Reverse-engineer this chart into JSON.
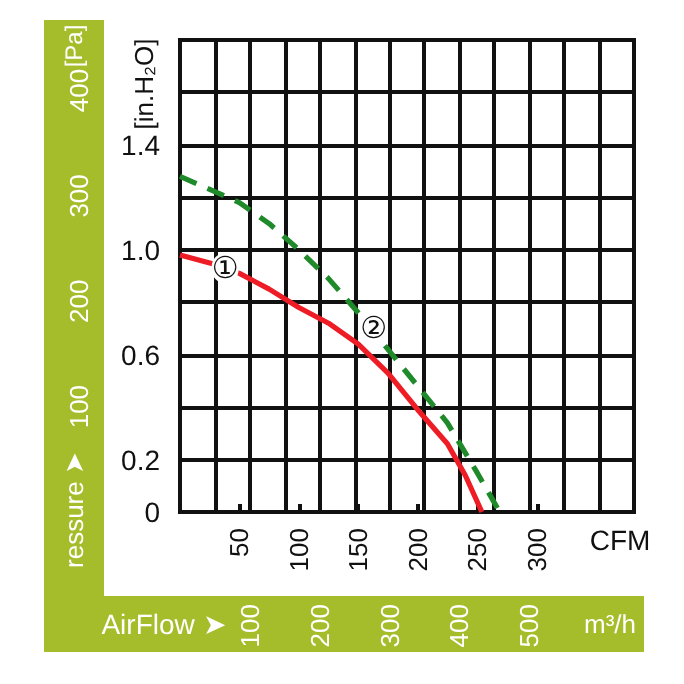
{
  "chart_data": {
    "type": "line",
    "xlabel": "CFM",
    "ylabel": "[in.H₂O]",
    "y2label": "[Pa]",
    "x2label": "AirFlow ➤",
    "annotations": [
      "ressure ➤",
      "m³/h",
      {
        "text": "①",
        "x": 38,
        "y": 0.93
      },
      {
        "text": "②",
        "x": 163,
        "y": 0.7
      }
    ],
    "xlim": [
      0,
      382
    ],
    "xticks": [
      50,
      100,
      150,
      200,
      250,
      300
    ],
    "ylim": [
      0,
      1.8
    ],
    "yticks": [
      0,
      {
        "value": 0.2,
        "label": "0.2"
      },
      {
        "value": 0.4,
        "label": null
      },
      {
        "value": 0.6,
        "label": "0.6"
      },
      {
        "value": 0.8,
        "label": null
      },
      {
        "value": 1.0,
        "label": "1.0"
      },
      {
        "value": 1.2,
        "label": null
      },
      {
        "value": 1.4,
        "label": "1.4"
      },
      {
        "value": 1.6,
        "label": null
      },
      {
        "value": 1.8,
        "label": null
      }
    ],
    "y2lim": [
      0,
      448
    ],
    "y2ticks": [
      100,
      200,
      300,
      400
    ],
    "x2lim": [
      0,
      650
    ],
    "x2ticks": [
      {
        "value": 50,
        "label": null
      },
      100,
      {
        "value": 150,
        "label": null
      },
      200,
      {
        "value": 250,
        "label": null
      },
      300,
      {
        "value": 350,
        "label": null
      },
      400,
      {
        "value": 450,
        "label": null
      },
      500,
      {
        "value": 550,
        "label": null
      },
      {
        "value": 600,
        "label": null
      }
    ],
    "grid": true,
    "marker": "none",
    "series": [
      {
        "color": "#ee1c25",
        "line_style": "solid",
        "x": [
          0,
          25,
          50,
          75,
          100,
          125,
          150,
          175,
          200,
          225,
          240,
          254
        ],
        "values": [
          0.98,
          0.95,
          0.91,
          0.85,
          0.78,
          0.72,
          0.64,
          0.53,
          0.39,
          0.26,
          0.14,
          0
        ]
      },
      {
        "color": "#1f8a2a",
        "line_style": "dashed",
        "x": [
          0,
          25,
          50,
          75,
          100,
          125,
          150,
          175,
          200,
          225,
          250,
          269
        ],
        "values": [
          1.28,
          1.23,
          1.18,
          1.1,
          1.0,
          0.89,
          0.76,
          0.62,
          0.48,
          0.34,
          0.15,
          0
        ]
      }
    ]
  }
}
